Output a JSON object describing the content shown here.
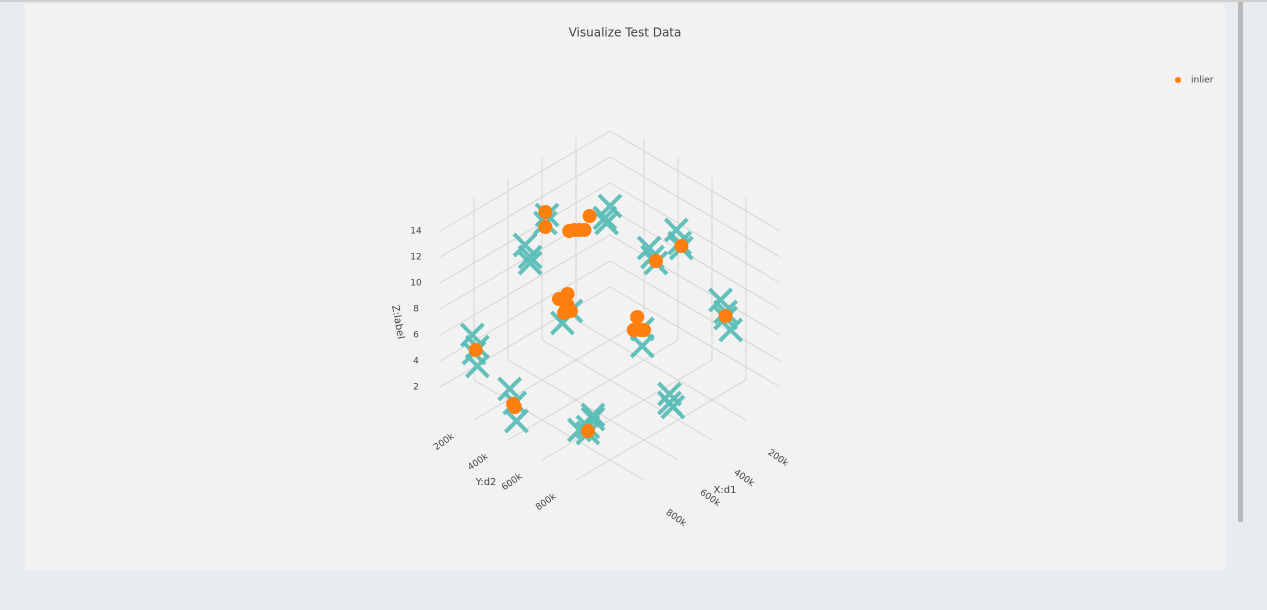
{
  "chart_data": {
    "type": "scatter3d",
    "title": "Visualize Test Data",
    "x_label": "X:d1",
    "y_label": "Y:d2",
    "z_label": "Z:label",
    "xlim": [
      0,
      1000000
    ],
    "ylim": [
      0,
      1000000
    ],
    "zlim": [
      1,
      15
    ],
    "xticks": [
      {
        "value": 200000,
        "label": "200k"
      },
      {
        "value": 400000,
        "label": "400k"
      },
      {
        "value": 600000,
        "label": "600k"
      },
      {
        "value": 800000,
        "label": "800k"
      }
    ],
    "yticks": [
      {
        "value": 200000,
        "label": "200k"
      },
      {
        "value": 400000,
        "label": "400k"
      },
      {
        "value": 600000,
        "label": "600k"
      },
      {
        "value": 800000,
        "label": "800k"
      }
    ],
    "zticks": [
      2,
      4,
      6,
      8,
      10,
      12,
      14
    ],
    "grid": true,
    "legend": "top-right",
    "series": [
      {
        "color": "#5bbdb6",
        "symbol": "x",
        "x": [
          820000,
          860000,
          840000,
          850000,
          860000,
          880000,
          870000,
          700000,
          730000,
          710000,
          740000,
          690000,
          340000,
          360000,
          350000,
          110000,
          140000,
          120000,
          130000,
          50000,
          70000,
          80000,
          30000,
          50000,
          40000,
          670000,
          700000,
          690000,
          520000,
          540000,
          320000,
          340000,
          310000,
          580000,
          560000,
          330000,
          310000
        ],
        "y": [
          40000,
          60000,
          30000,
          70000,
          300000,
          330000,
          280000,
          570000,
          600000,
          610000,
          560000,
          590000,
          690000,
          710000,
          720000,
          790000,
          820000,
          830000,
          780000,
          300000,
          340000,
          310000,
          440000,
          470000,
          430000,
          200000,
          230000,
          190000,
          140000,
          170000,
          290000,
          320000,
          310000,
          300000,
          330000,
          520000,
          500000
        ],
        "z": [
          4,
          4,
          5,
          3,
          2,
          1,
          3,
          1,
          1,
          2,
          1,
          2,
          1,
          2,
          1,
          7,
          7,
          6,
          8,
          7,
          7,
          8,
          9,
          9,
          10,
          11,
          11,
          12,
          12,
          13,
          12,
          12,
          13,
          6,
          7,
          4,
          5
        ]
      },
      {
        "name": "inlier",
        "color": "#ff7f0e",
        "symbol": "circle",
        "x": [
          570000,
          550000,
          590000,
          560000,
          600000,
          540000,
          320000,
          330000,
          310000,
          340000,
          455000,
          470000,
          440000,
          420000,
          490000,
          530000,
          540000,
          880000,
          870000,
          840000,
          720000,
          40000,
          60000,
          130000
        ],
        "y": [
          310000,
          300000,
          320000,
          330000,
          300000,
          290000,
          500000,
          490000,
          510000,
          480000,
          275000,
          260000,
          290000,
          300000,
          250000,
          150000,
          160000,
          320000,
          300000,
          50000,
          590000,
          460000,
          330000,
          810000
        ],
        "z": [
          7,
          8,
          7,
          7,
          8,
          7,
          5,
          6,
          5,
          5,
          12,
          12,
          12,
          13,
          12,
          13,
          12,
          2,
          2,
          4,
          1,
          9,
          7,
          7
        ]
      }
    ]
  }
}
